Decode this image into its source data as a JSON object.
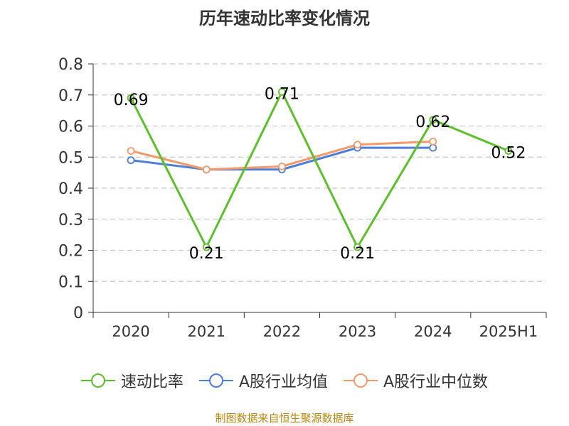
{
  "chart_data": {
    "type": "line",
    "title": "历年速动比率变化情况",
    "categories": [
      "2020",
      "2021",
      "2022",
      "2023",
      "2024",
      "2025H1"
    ],
    "ylim": [
      0,
      0.8
    ],
    "yticks": [
      "0",
      "0.1",
      "0.2",
      "0.3",
      "0.4",
      "0.5",
      "0.6",
      "0.7",
      "0.8"
    ],
    "series": [
      {
        "name": "速动比率",
        "color": "#5cc02a",
        "values": [
          0.69,
          0.21,
          0.71,
          0.21,
          0.62,
          0.52
        ],
        "labels": [
          "0.69",
          "0.21",
          "0.71",
          "0.21",
          "0.62",
          "0.52"
        ]
      },
      {
        "name": "A股行业均值",
        "color": "#4d7fd8",
        "values": [
          0.49,
          0.46,
          0.46,
          0.53,
          0.53,
          null
        ]
      },
      {
        "name": "A股行业中位数",
        "color": "#f39a6b",
        "values": [
          0.52,
          0.46,
          0.47,
          0.54,
          0.55,
          null
        ]
      }
    ]
  },
  "source": "制图数据来自恒生聚源数据库"
}
